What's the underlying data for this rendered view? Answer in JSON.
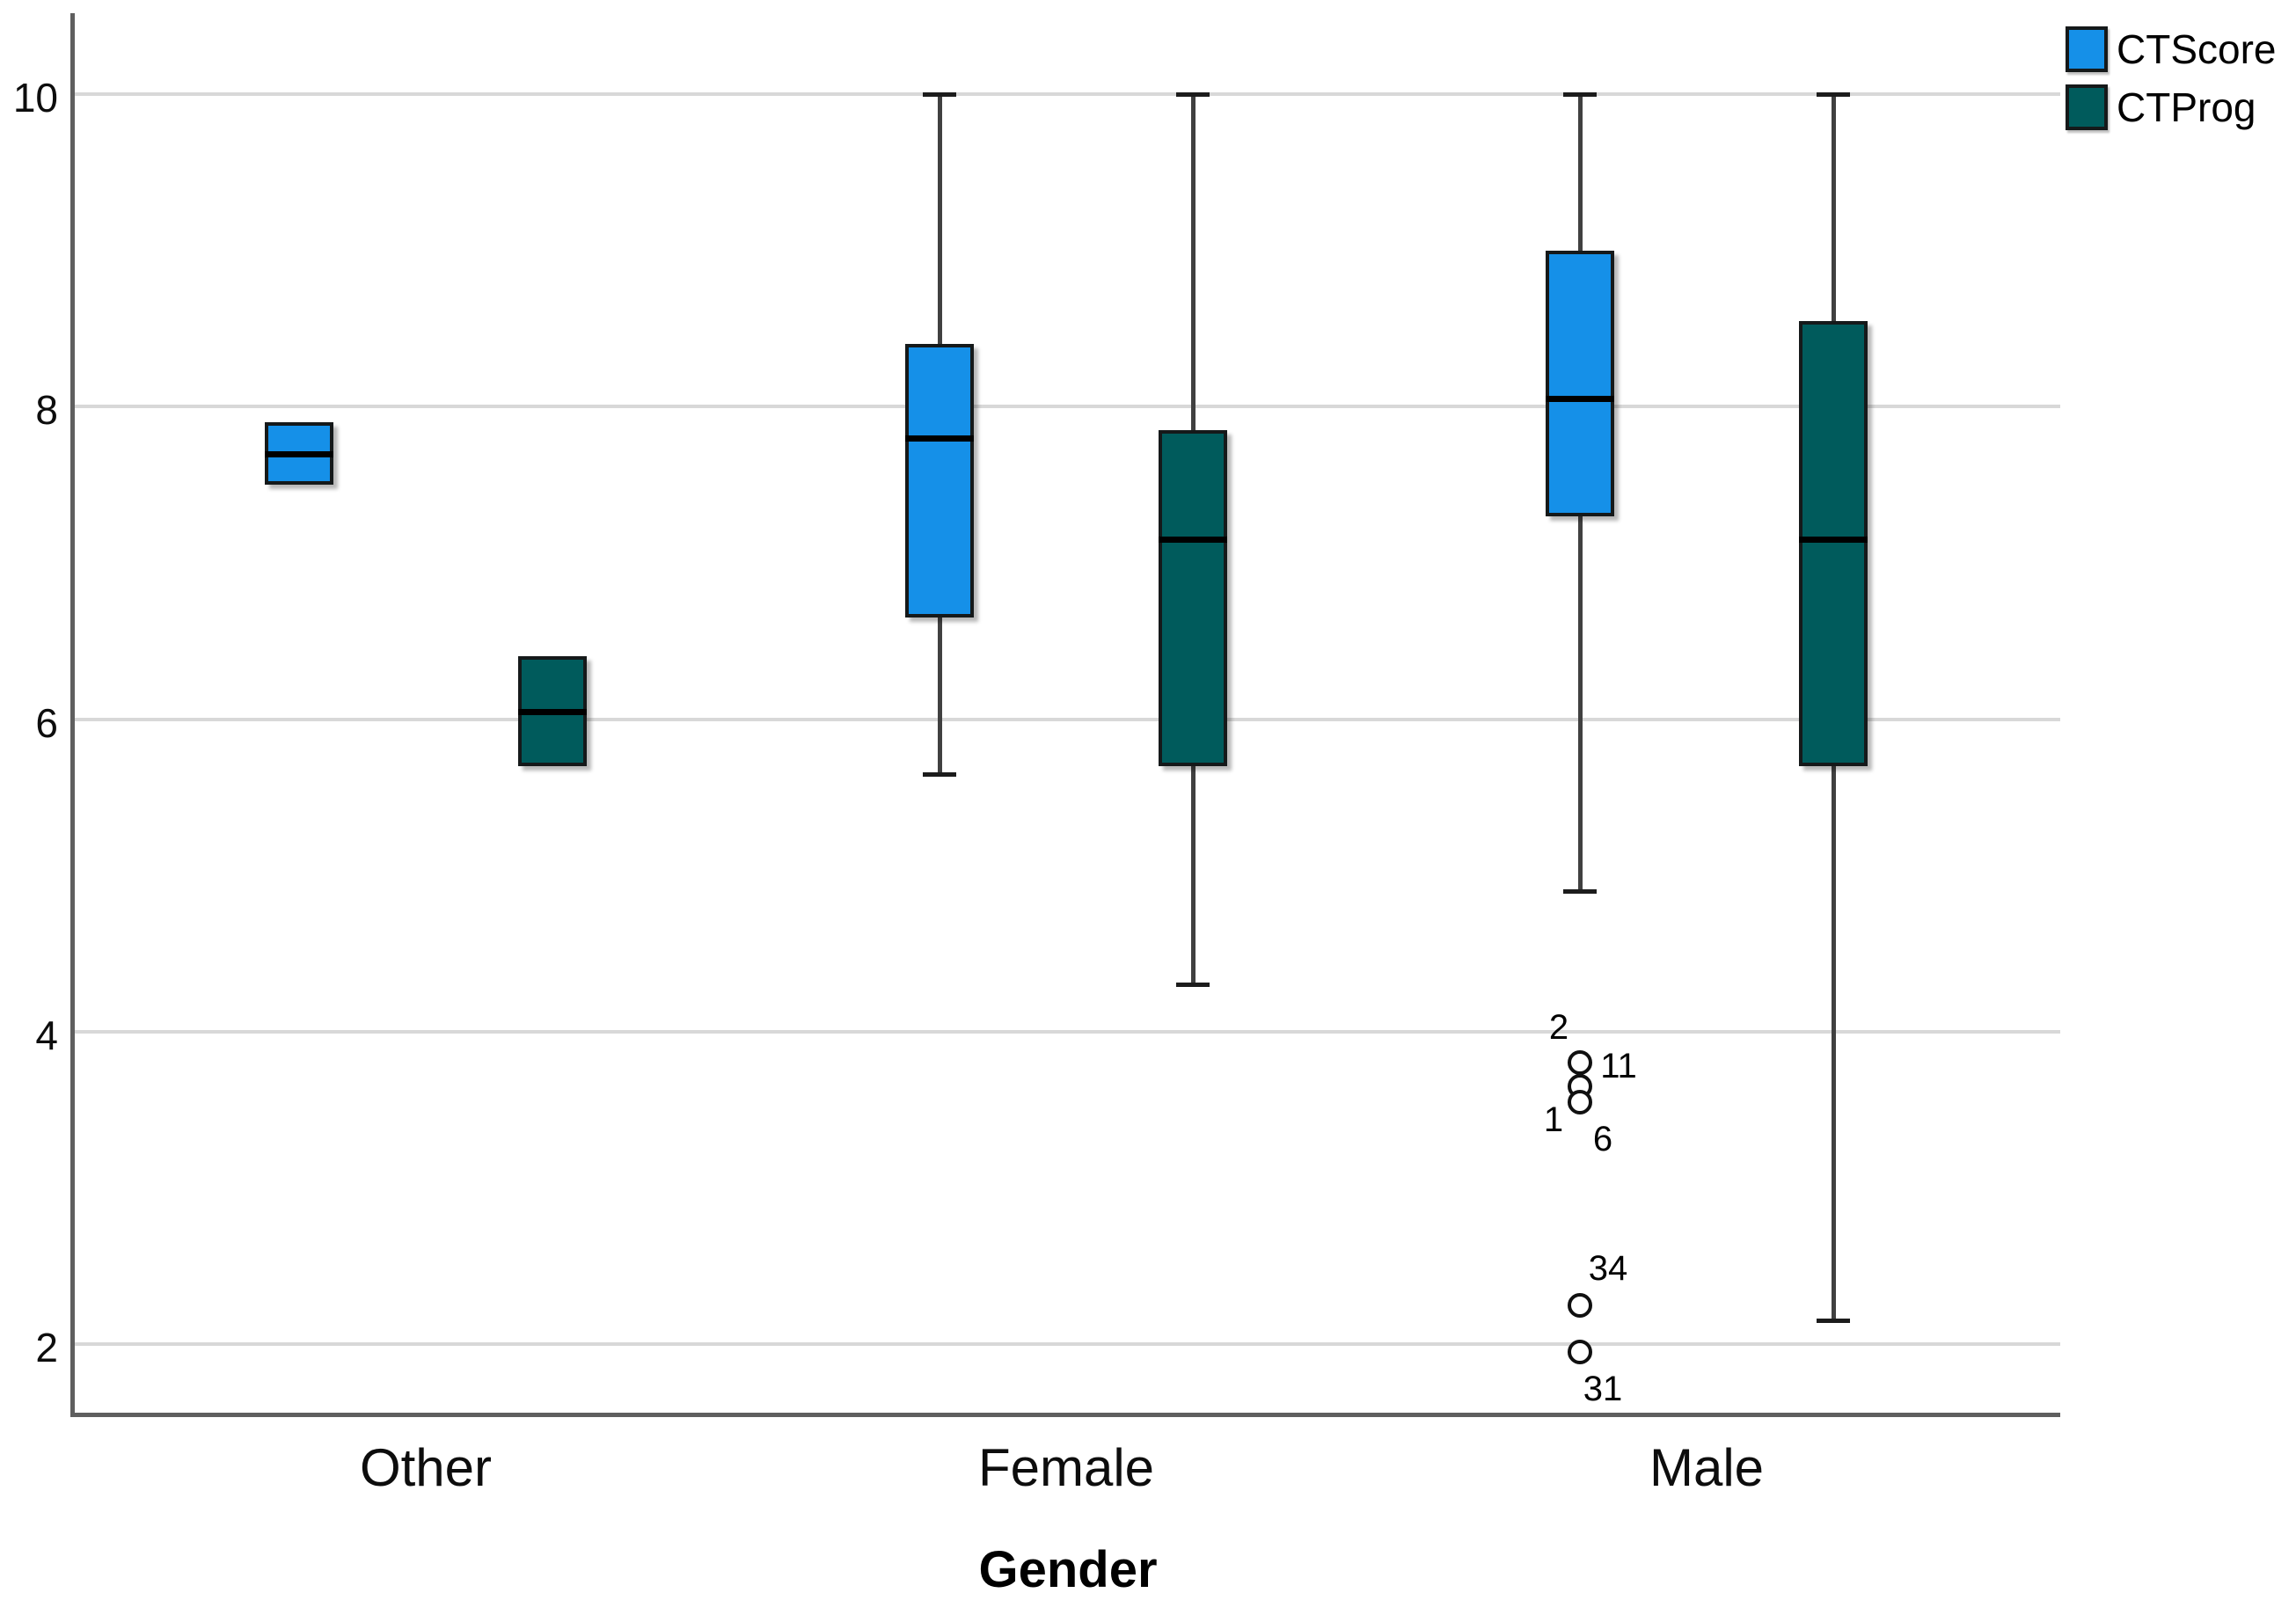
{
  "chart_data": {
    "type": "boxplot",
    "title": "",
    "xlabel": "Gender",
    "ylabel": "",
    "ylim": [
      1.55,
      10.5
    ],
    "yticks": [
      2,
      4,
      6,
      8,
      10
    ],
    "grid": "horizontal-gridlines",
    "legend_position": "top-right",
    "categories": [
      "Other",
      "Female",
      "Male"
    ],
    "series": [
      {
        "name": "CTScore",
        "color": "#1590e8",
        "boxes": [
          {
            "category": "Other",
            "q1": 7.5,
            "median": 7.7,
            "q3": 7.9,
            "whisker_low": null,
            "whisker_high": null,
            "outliers": []
          },
          {
            "category": "Female",
            "q1": 6.65,
            "median": 7.8,
            "q3": 8.4,
            "whisker_low": 5.65,
            "whisker_high": 10,
            "outliers": []
          },
          {
            "category": "Male",
            "q1": 7.3,
            "median": 8.05,
            "q3": 9.0,
            "whisker_low": 4.9,
            "whisker_high": 10,
            "outliers": [
              {
                "value": 3.8,
                "labels": [
                  {
                    "text": "2",
                    "side": "above-left"
                  },
                  {
                    "text": "11",
                    "side": "right"
                  }
                ]
              },
              {
                "value": 3.65,
                "labels": [
                  {
                    "text": "1",
                    "side": "left"
                  }
                ]
              },
              {
                "value": 3.55,
                "labels": [
                  {
                    "text": "6",
                    "side": "below-right"
                  }
                ]
              },
              {
                "value": 2.25,
                "labels": [
                  {
                    "text": "34",
                    "side": "above-right"
                  }
                ]
              },
              {
                "value": 1.95,
                "labels": [
                  {
                    "text": "31",
                    "side": "below-right"
                  }
                ]
              }
            ]
          }
        ]
      },
      {
        "name": "CTProg",
        "color": "#005b5c",
        "boxes": [
          {
            "category": "Other",
            "q1": 5.7,
            "median": 6.05,
            "q3": 6.4,
            "whisker_low": null,
            "whisker_high": null,
            "outliers": []
          },
          {
            "category": "Female",
            "q1": 5.7,
            "median": 7.15,
            "q3": 7.85,
            "whisker_low": 4.3,
            "whisker_high": 10,
            "outliers": []
          },
          {
            "category": "Male",
            "q1": 5.7,
            "median": 7.15,
            "q3": 8.55,
            "whisker_low": 2.15,
            "whisker_high": 10,
            "outliers": []
          }
        ]
      }
    ]
  }
}
